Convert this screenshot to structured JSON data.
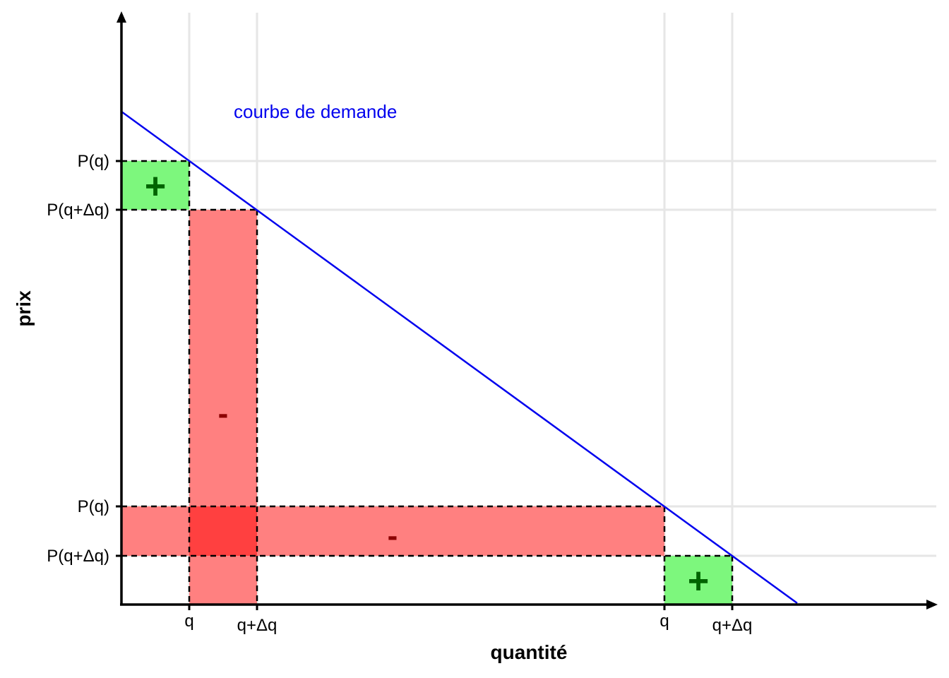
{
  "axes": {
    "x_title": "quantité",
    "y_title": "prix"
  },
  "curve": {
    "label": "courbe de demande",
    "color": "#0000ee"
  },
  "x_ticks": {
    "left_q": "q",
    "left_q_dq": "q+Δq",
    "right_q": "q",
    "right_q_dq": "q+Δq"
  },
  "y_ticks": {
    "top_pq": "P(q)",
    "top_pq_dq": "P(q+Δq)",
    "bottom_pq": "P(q)",
    "bottom_pq_dq": "P(q+Δq)"
  },
  "signs": {
    "gain_left": "+",
    "loss_left": "-",
    "loss_right": "-",
    "gain_right": "+"
  },
  "colors": {
    "gain_fill": "#7df77d",
    "loss_fill": "#ff8080",
    "overlap_fill": "#ff4040",
    "gain_sign": "#006400",
    "loss_sign": "#8b0000"
  }
}
